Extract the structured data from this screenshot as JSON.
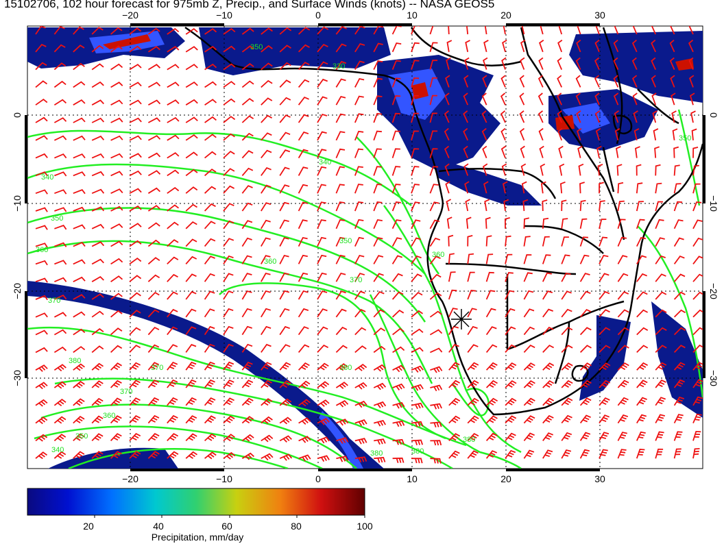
{
  "title": "15102706, 102 hour forecast for 975mb Z, Precip., and Surface Winds (knots) -- NASA GEOS5",
  "lon_ticks": [
    "−20",
    "−10",
    "0",
    "10",
    "20",
    "30"
  ],
  "lat_ticks": [
    "0",
    "−10",
    "−20",
    "−30"
  ],
  "contour_labels": [
    "350",
    "340",
    "350",
    "360",
    "370",
    "340",
    "350",
    "360",
    "370",
    "380",
    "370",
    "370",
    "360",
    "350",
    "340",
    "380",
    "380",
    "380",
    "360",
    "380",
    "350",
    "330"
  ],
  "colorbar": {
    "ticks": [
      "20",
      "40",
      "60",
      "80",
      "100"
    ],
    "label": "Precipitation, mm/day",
    "range": [
      0,
      100
    ]
  },
  "colors": {
    "contour": "#22ee22",
    "barb": "#ee1111",
    "precip_low": "#0a1a8c",
    "precip_mid": "#3355ff",
    "precip_high": "#cc1100",
    "coast": "#000000"
  },
  "marker": "station-star"
}
